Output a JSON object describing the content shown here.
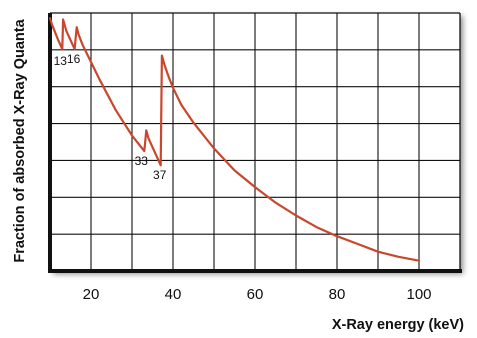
{
  "chart_data": {
    "type": "line",
    "title": "",
    "xlabel": "X-Ray energy (keV)",
    "ylabel": "Fraction of absorbed X-Ray Quanta",
    "xlim": [
      10,
      110
    ],
    "ylim": [
      0,
      1
    ],
    "x_ticks": [
      20,
      40,
      60,
      80,
      100
    ],
    "y_ticks": [],
    "grid": true,
    "legend": "none",
    "line_color": "#c9472c",
    "series": [
      {
        "name": "",
        "x": [
          10,
          10.5,
          11,
          12,
          13,
          13.2,
          14,
          15,
          16,
          16.5,
          17,
          18,
          20,
          22,
          24,
          26,
          28,
          30,
          31,
          32,
          33,
          33.5,
          34,
          35,
          36,
          37,
          37.3,
          38,
          39,
          40,
          42,
          45,
          50,
          55,
          60,
          65,
          70,
          75,
          80,
          85,
          90,
          95,
          100
        ],
        "y": [
          0.98,
          0.955,
          0.935,
          0.895,
          0.86,
          0.975,
          0.93,
          0.895,
          0.86,
          0.945,
          0.915,
          0.875,
          0.81,
          0.745,
          0.685,
          0.625,
          0.575,
          0.525,
          0.505,
          0.485,
          0.465,
          0.545,
          0.515,
          0.48,
          0.445,
          0.41,
          0.835,
          0.795,
          0.75,
          0.71,
          0.645,
          0.575,
          0.475,
          0.39,
          0.325,
          0.265,
          0.215,
          0.17,
          0.135,
          0.105,
          0.075,
          0.055,
          0.04
        ]
      }
    ],
    "annotations": [
      {
        "text": "13",
        "x": 13,
        "y": 0.86
      },
      {
        "text": "16",
        "x": 16,
        "y": 0.86
      },
      {
        "text": "33",
        "x": 33,
        "y": 0.465
      },
      {
        "text": "37",
        "x": 37,
        "y": 0.41
      }
    ]
  }
}
